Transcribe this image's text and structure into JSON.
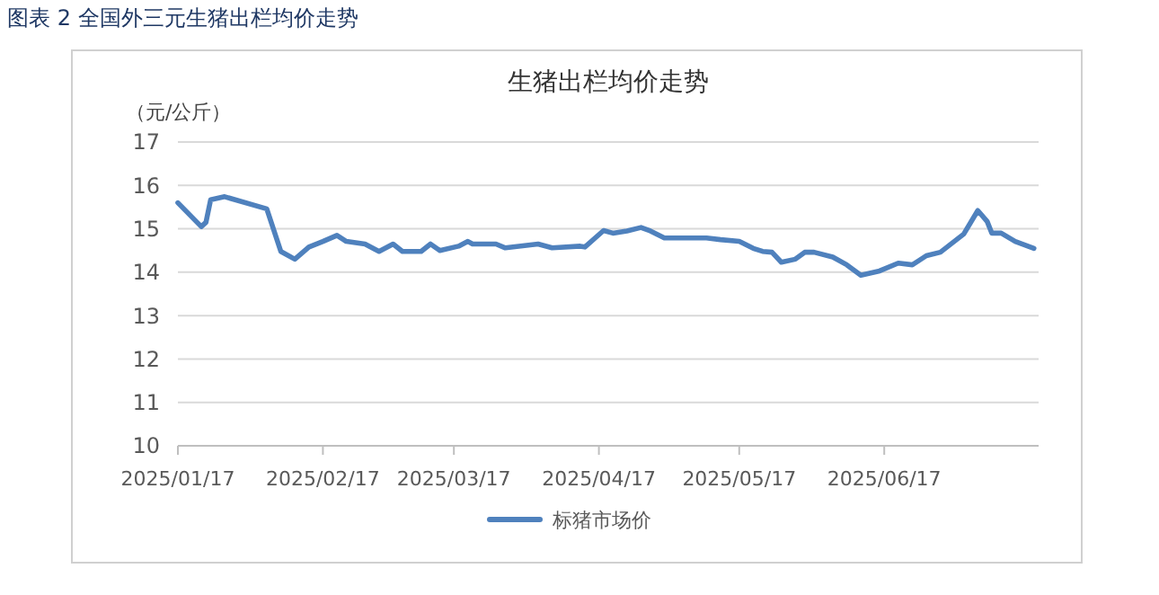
{
  "chart_data": {
    "type": "line",
    "subtitle": "图表 2 全国外三元生猪出栏均价走势",
    "title": "生猪出栏均价走势",
    "ylabel": "（元/公斤）",
    "ylim": [
      10,
      17
    ],
    "yticks": [
      10,
      11,
      12,
      13,
      14,
      15,
      16,
      17
    ],
    "xlim": [
      "2025-01-17",
      "2025-07-20"
    ],
    "xticks": [
      {
        "value": "2025-01-17",
        "label": "2025/01/17"
      },
      {
        "value": "2025-02-17",
        "label": "2025/02/17"
      },
      {
        "value": "2025-03-17",
        "label": "2025/03/17"
      },
      {
        "value": "2025-04-17",
        "label": "2025/04/17"
      },
      {
        "value": "2025-05-17",
        "label": "2025/05/17"
      },
      {
        "value": "2025-06-17",
        "label": "2025/06/17"
      }
    ],
    "x": [
      "2025-01-17",
      "2025-01-22",
      "2025-01-23",
      "2025-01-24",
      "2025-01-27",
      "2025-02-05",
      "2025-02-08",
      "2025-02-11",
      "2025-02-14",
      "2025-02-17",
      "2025-02-20",
      "2025-02-22",
      "2025-02-26",
      "2025-03-01",
      "2025-03-04",
      "2025-03-06",
      "2025-03-10",
      "2025-03-12",
      "2025-03-14",
      "2025-03-18",
      "2025-03-20",
      "2025-03-21",
      "2025-03-26",
      "2025-03-28",
      "2025-04-04",
      "2025-04-07",
      "2025-04-13",
      "2025-04-14",
      "2025-04-18",
      "2025-04-20",
      "2025-04-23",
      "2025-04-26",
      "2025-04-28",
      "2025-05-01",
      "2025-05-10",
      "2025-05-13",
      "2025-05-17",
      "2025-05-20",
      "2025-05-22",
      "2025-05-24",
      "2025-05-26",
      "2025-05-29",
      "2025-05-31",
      "2025-06-02",
      "2025-06-06",
      "2025-06-09",
      "2025-06-12",
      "2025-06-16",
      "2025-06-20",
      "2025-06-23",
      "2025-06-26",
      "2025-06-29",
      "2025-07-04",
      "2025-07-07",
      "2025-07-09",
      "2025-07-10",
      "2025-07-12",
      "2025-07-15",
      "2025-07-19"
    ],
    "series": [
      {
        "name": "标猪市场价",
        "color": "#4f81bd",
        "values": [
          15.6,
          15.05,
          15.15,
          15.67,
          15.74,
          15.46,
          14.48,
          14.3,
          14.58,
          14.71,
          14.85,
          14.71,
          14.65,
          14.48,
          14.65,
          14.48,
          14.48,
          14.65,
          14.5,
          14.6,
          14.71,
          14.65,
          14.65,
          14.56,
          14.65,
          14.56,
          14.6,
          14.58,
          14.96,
          14.9,
          14.95,
          15.03,
          14.95,
          14.79,
          14.79,
          14.75,
          14.71,
          14.55,
          14.48,
          14.46,
          14.23,
          14.3,
          14.46,
          14.46,
          14.35,
          14.17,
          13.93,
          14.03,
          14.21,
          14.17,
          14.38,
          14.46,
          14.88,
          15.42,
          15.17,
          14.9,
          14.9,
          14.71,
          14.55
        ]
      }
    ],
    "grid": "y",
    "legend": "bottom",
    "line_style": "solid",
    "marker": "none"
  }
}
